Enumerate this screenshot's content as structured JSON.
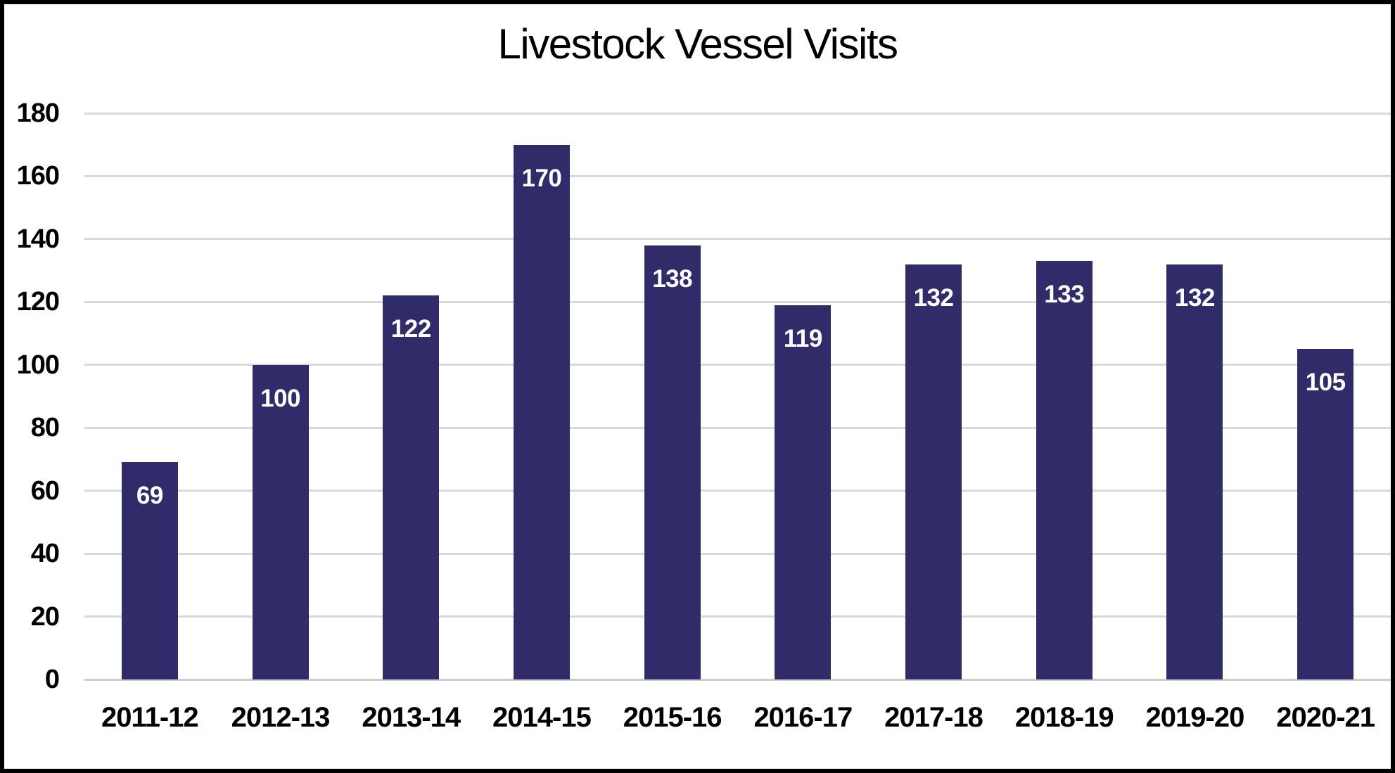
{
  "chart_data": {
    "type": "bar",
    "title": "Livestock Vessel Visits",
    "categories": [
      "2011-12",
      "2012-13",
      "2013-14",
      "2014-15",
      "2015-16",
      "2016-17",
      "2017-18",
      "2018-19",
      "2019-20",
      "2020-21"
    ],
    "values": [
      69,
      100,
      122,
      170,
      138,
      119,
      132,
      133,
      132,
      105
    ],
    "data_labels_shown": true,
    "xlabel": "",
    "ylabel": "",
    "ylim": [
      0,
      180
    ],
    "yticks": [
      0,
      20,
      40,
      60,
      80,
      100,
      120,
      140,
      160,
      180
    ],
    "grid": "horizontal",
    "legend": "none",
    "colors": {
      "bar": "#302C6A",
      "bar_label": "#FFFFFF",
      "gridline": "#D9D9D9",
      "axis_line": "#CCCCCC",
      "text": "#000000",
      "background": "#FFFFFF",
      "frame_border": "#000000"
    }
  }
}
